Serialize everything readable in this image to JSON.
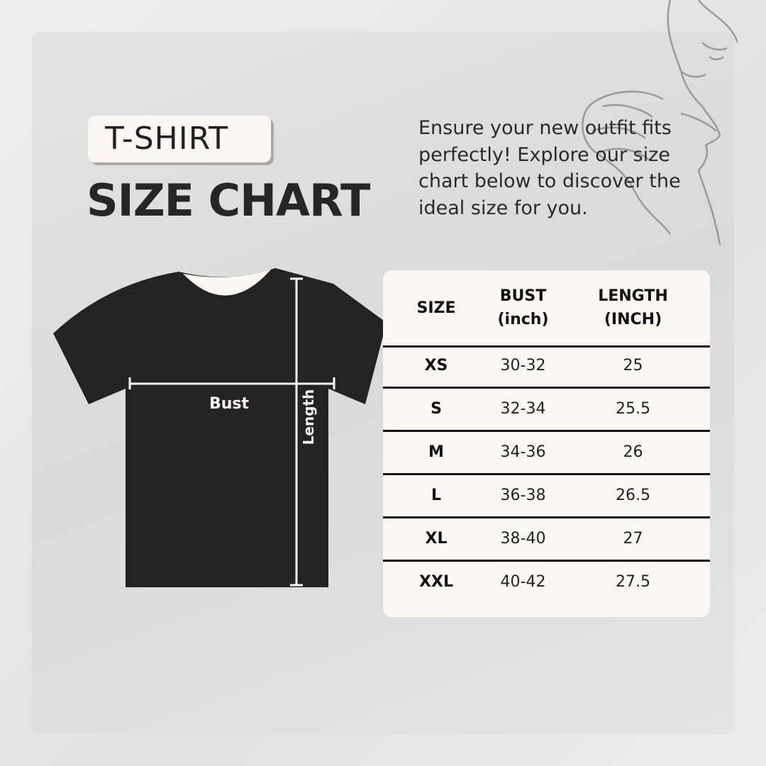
{
  "header": {
    "tag": "T-SHIRT",
    "title": "SIZE CHART"
  },
  "intro": "Ensure your new outfit fits perfectly! Explore our size chart below to discover the ideal size for you.",
  "diagram": {
    "bust_label": "Bust",
    "length_label": "Length"
  },
  "table": {
    "columns": [
      {
        "line1": "SIZE",
        "line2": ""
      },
      {
        "line1": "BUST",
        "line2": "(inch)"
      },
      {
        "line1": "LENGTH",
        "line2": "(INCH)"
      }
    ],
    "rows": [
      {
        "size": "XS",
        "bust": "30-32",
        "length": "25"
      },
      {
        "size": "S",
        "bust": "32-34",
        "length": "25.5"
      },
      {
        "size": "M",
        "bust": "34-36",
        "length": "26"
      },
      {
        "size": "L",
        "bust": "36-38",
        "length": "26.5"
      },
      {
        "size": "XL",
        "bust": "38-40",
        "length": "27"
      },
      {
        "size": "XXL",
        "bust": "40-42",
        "length": "27.5"
      }
    ]
  },
  "colors": {
    "shirt": "#232323",
    "card": "#fbf8f4",
    "background": "#dedede"
  }
}
